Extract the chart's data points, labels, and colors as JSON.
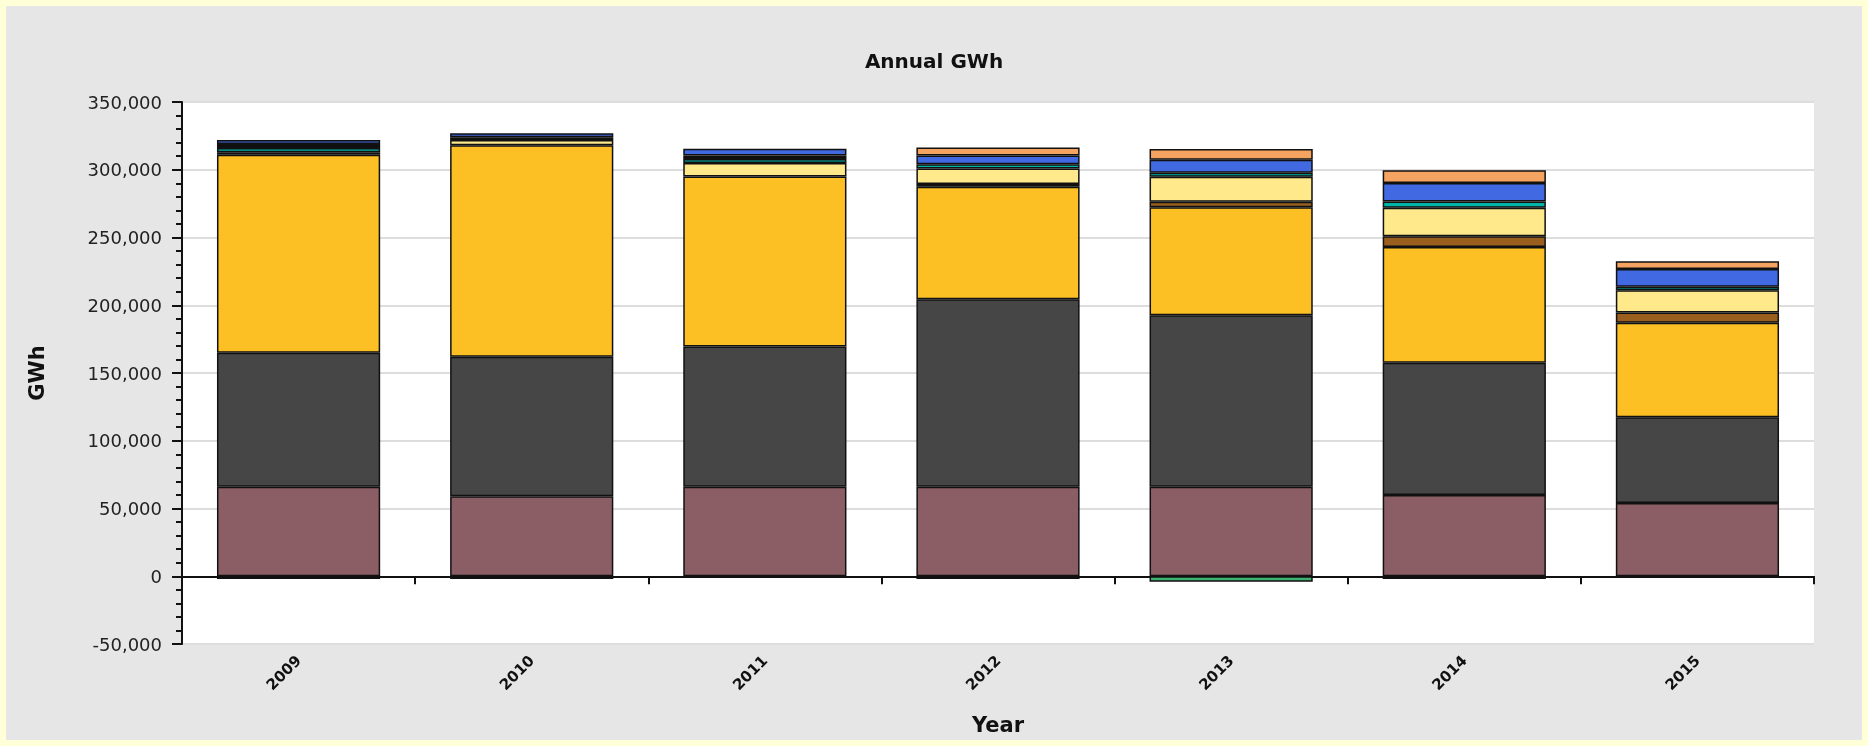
{
  "chart_data": {
    "type": "bar",
    "stacked": true,
    "title": "Annual GWh",
    "xlabel": "Year",
    "ylabel": "GWh",
    "categories": [
      "2009",
      "2010",
      "2011",
      "2012",
      "2013",
      "2014",
      "2015"
    ],
    "series": [
      {
        "color": "#8b5e66",
        "values": [
          66000,
          59000,
          66000,
          66000,
          66000,
          60000,
          54000
        ]
      },
      {
        "color": "#464646",
        "values": [
          99000,
          103000,
          103500,
          138500,
          126600,
          97500,
          63300
        ]
      },
      {
        "color": "#fdc024",
        "values": [
          146000,
          156000,
          125500,
          83000,
          79700,
          85500,
          69700
        ]
      },
      {
        "color": "#9a5e1e",
        "values": [
          null,
          null,
          null,
          2000,
          4000,
          8000,
          7600
        ]
      },
      {
        "color": "#ffe98a",
        "values": [
          2000,
          4000,
          10000,
          11500,
          18600,
          21000,
          16500
        ]
      },
      {
        "color": "#00b5a8",
        "values": [
          3000,
          null,
          3000,
          3000,
          2900,
          4500,
          2600
        ]
      },
      {
        "color": "#111111",
        "values": [
          3000,
          2000,
          2500,
          null,
          null,
          -2000,
          -1000
        ]
      },
      {
        "color": "#4169e1",
        "values": [
          3000,
          3000,
          5000,
          6500,
          9500,
          13700,
          13000
        ]
      },
      {
        "color": "#f4a460",
        "values": [
          null,
          null,
          null,
          6000,
          8000,
          9500,
          5800
        ]
      },
      {
        "color": "#3cb371",
        "values": [
          -2000,
          -2000,
          null,
          -2000,
          -4000,
          null,
          null
        ]
      }
    ],
    "ylim": [
      -50000,
      350000
    ],
    "yticks": [
      {
        "value": -50000,
        "label": "-50,000"
      },
      {
        "value": 0,
        "label": "0"
      },
      {
        "value": 50000,
        "label": "50,000"
      },
      {
        "value": 100000,
        "label": "100,000"
      },
      {
        "value": 150000,
        "label": "150,000"
      },
      {
        "value": 200000,
        "label": "200,000"
      },
      {
        "value": 250000,
        "label": "250,000"
      },
      {
        "value": 300000,
        "label": "300,000"
      },
      {
        "value": 350000,
        "label": "350,000"
      }
    ],
    "grid": "y"
  }
}
